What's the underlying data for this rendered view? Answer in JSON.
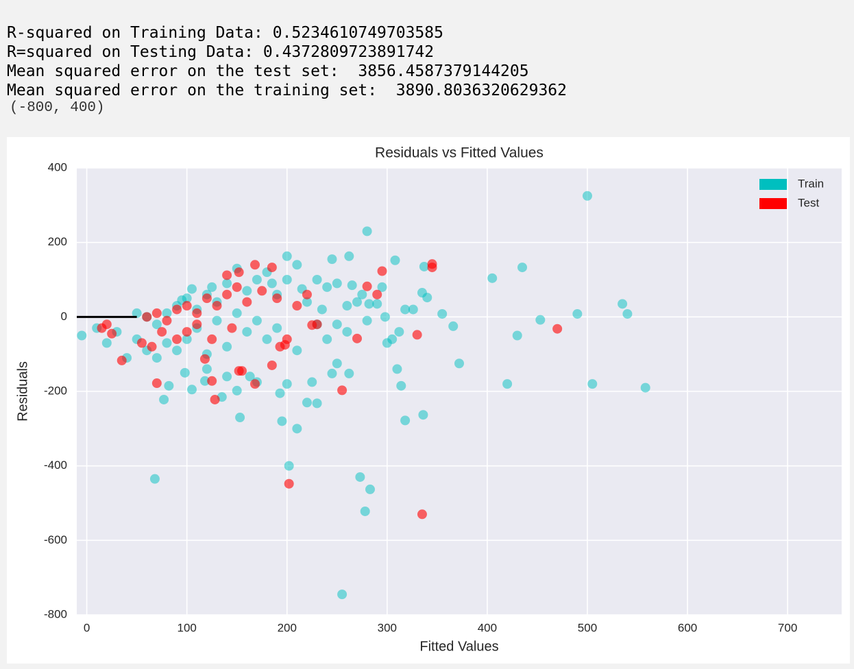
{
  "output_lines": [
    "R-squared on Training Data: 0.5234610749703585",
    "R=squared on Testing Data: 0.4372809723891742",
    "Mean squared error on the test set:  3856.4587379144205",
    "Mean squared error on the training set:  3890.8036320629362"
  ],
  "result": "(-800, 400)",
  "chart_data": {
    "type": "scatter",
    "title": "Residuals vs Fitted Values",
    "xlabel": "Fitted Values",
    "ylabel": "Residuals",
    "xlim": [
      -10,
      754
    ],
    "ylim": [
      -800,
      400
    ],
    "xticks": [
      0,
      100,
      200,
      300,
      400,
      500,
      600,
      700
    ],
    "yticks": [
      -800,
      -600,
      -400,
      -200,
      0,
      200,
      400
    ],
    "grid": true,
    "legend": "upper right",
    "hline": {
      "y": 0,
      "xmin": -10,
      "xmax": 50,
      "color": "#000000"
    },
    "series": [
      {
        "name": "Train",
        "color": "#00bfbf",
        "alpha": 0.5,
        "x": [
          500,
          280,
          262,
          200,
          245,
          308,
          435,
          405,
          337,
          540,
          535,
          490,
          453,
          430,
          420,
          505,
          558,
          372,
          366,
          355,
          340,
          335,
          318,
          326,
          312,
          310,
          314,
          318,
          336,
          300,
          305,
          298,
          280,
          282,
          295,
          255,
          278,
          283,
          273,
          202,
          68,
          77,
          82,
          210,
          195,
          250,
          245,
          262,
          230,
          220,
          225,
          200,
          193,
          153,
          135,
          105,
          118,
          150,
          170,
          163,
          140,
          98,
          120,
          260,
          270,
          250,
          240,
          230,
          215,
          -5,
          10,
          20,
          30,
          40,
          50,
          60,
          70,
          80,
          90,
          100,
          110,
          120,
          130,
          140,
          150,
          160,
          170,
          180,
          190,
          200,
          210,
          220,
          230,
          240,
          210,
          180,
          160,
          140,
          120,
          100,
          90,
          80,
          70,
          110,
          130,
          150,
          170,
          190,
          260,
          250,
          265,
          275,
          290,
          60,
          50,
          95,
          105,
          125,
          185,
          235
        ],
        "y": [
          325,
          230,
          163,
          163,
          155,
          152,
          133,
          104,
          135,
          8,
          35,
          8,
          -8,
          -50,
          -180,
          -180,
          -190,
          -125,
          -25,
          8,
          52,
          65,
          20,
          20,
          -40,
          -140,
          -185,
          -278,
          -263,
          -70,
          -60,
          0,
          -10,
          35,
          80,
          -745,
          -522,
          -463,
          -430,
          -400,
          -435,
          -222,
          -185,
          -300,
          -280,
          -125,
          -152,
          -152,
          -232,
          -230,
          -175,
          -180,
          -205,
          -270,
          -215,
          -195,
          -172,
          -198,
          -175,
          -160,
          -160,
          -150,
          -140,
          30,
          40,
          90,
          80,
          100,
          75,
          -50,
          -30,
          -70,
          -40,
          -110,
          -60,
          -90,
          -20,
          10,
          30,
          50,
          20,
          60,
          40,
          90,
          130,
          70,
          100,
          120,
          60,
          100,
          140,
          40,
          -20,
          -60,
          -90,
          -60,
          -40,
          -80,
          -100,
          -60,
          -90,
          -70,
          -110,
          -30,
          -10,
          10,
          -10,
          -30,
          -40,
          -20,
          85,
          60,
          35,
          0,
          10,
          45,
          75,
          80,
          90,
          20
        ]
      },
      {
        "name": "Test",
        "color": "#ff0000",
        "alpha": 0.6,
        "x": [
          345,
          345,
          295,
          168,
          185,
          140,
          152,
          280,
          290,
          270,
          330,
          470,
          255,
          335,
          202,
          70,
          128,
          125,
          118,
          155,
          152,
          168,
          185,
          35,
          15,
          20,
          25,
          230,
          225,
          200,
          193,
          198,
          60,
          70,
          80,
          90,
          100,
          110,
          120,
          130,
          110,
          90,
          75,
          140,
          150,
          160,
          175,
          190,
          210,
          220,
          100,
          125,
          145,
          55,
          65
        ],
        "y": [
          142,
          133,
          123,
          140,
          133,
          112,
          120,
          82,
          60,
          -58,
          -48,
          -32,
          -197,
          -530,
          -448,
          -178,
          -222,
          -172,
          -113,
          -145,
          -145,
          -180,
          -130,
          -117,
          -30,
          -20,
          -45,
          -20,
          -22,
          -60,
          -80,
          -75,
          0,
          10,
          -10,
          20,
          30,
          10,
          50,
          30,
          -20,
          -60,
          -40,
          60,
          80,
          40,
          70,
          50,
          30,
          60,
          -40,
          -60,
          -30,
          -70,
          -80
        ]
      }
    ]
  }
}
